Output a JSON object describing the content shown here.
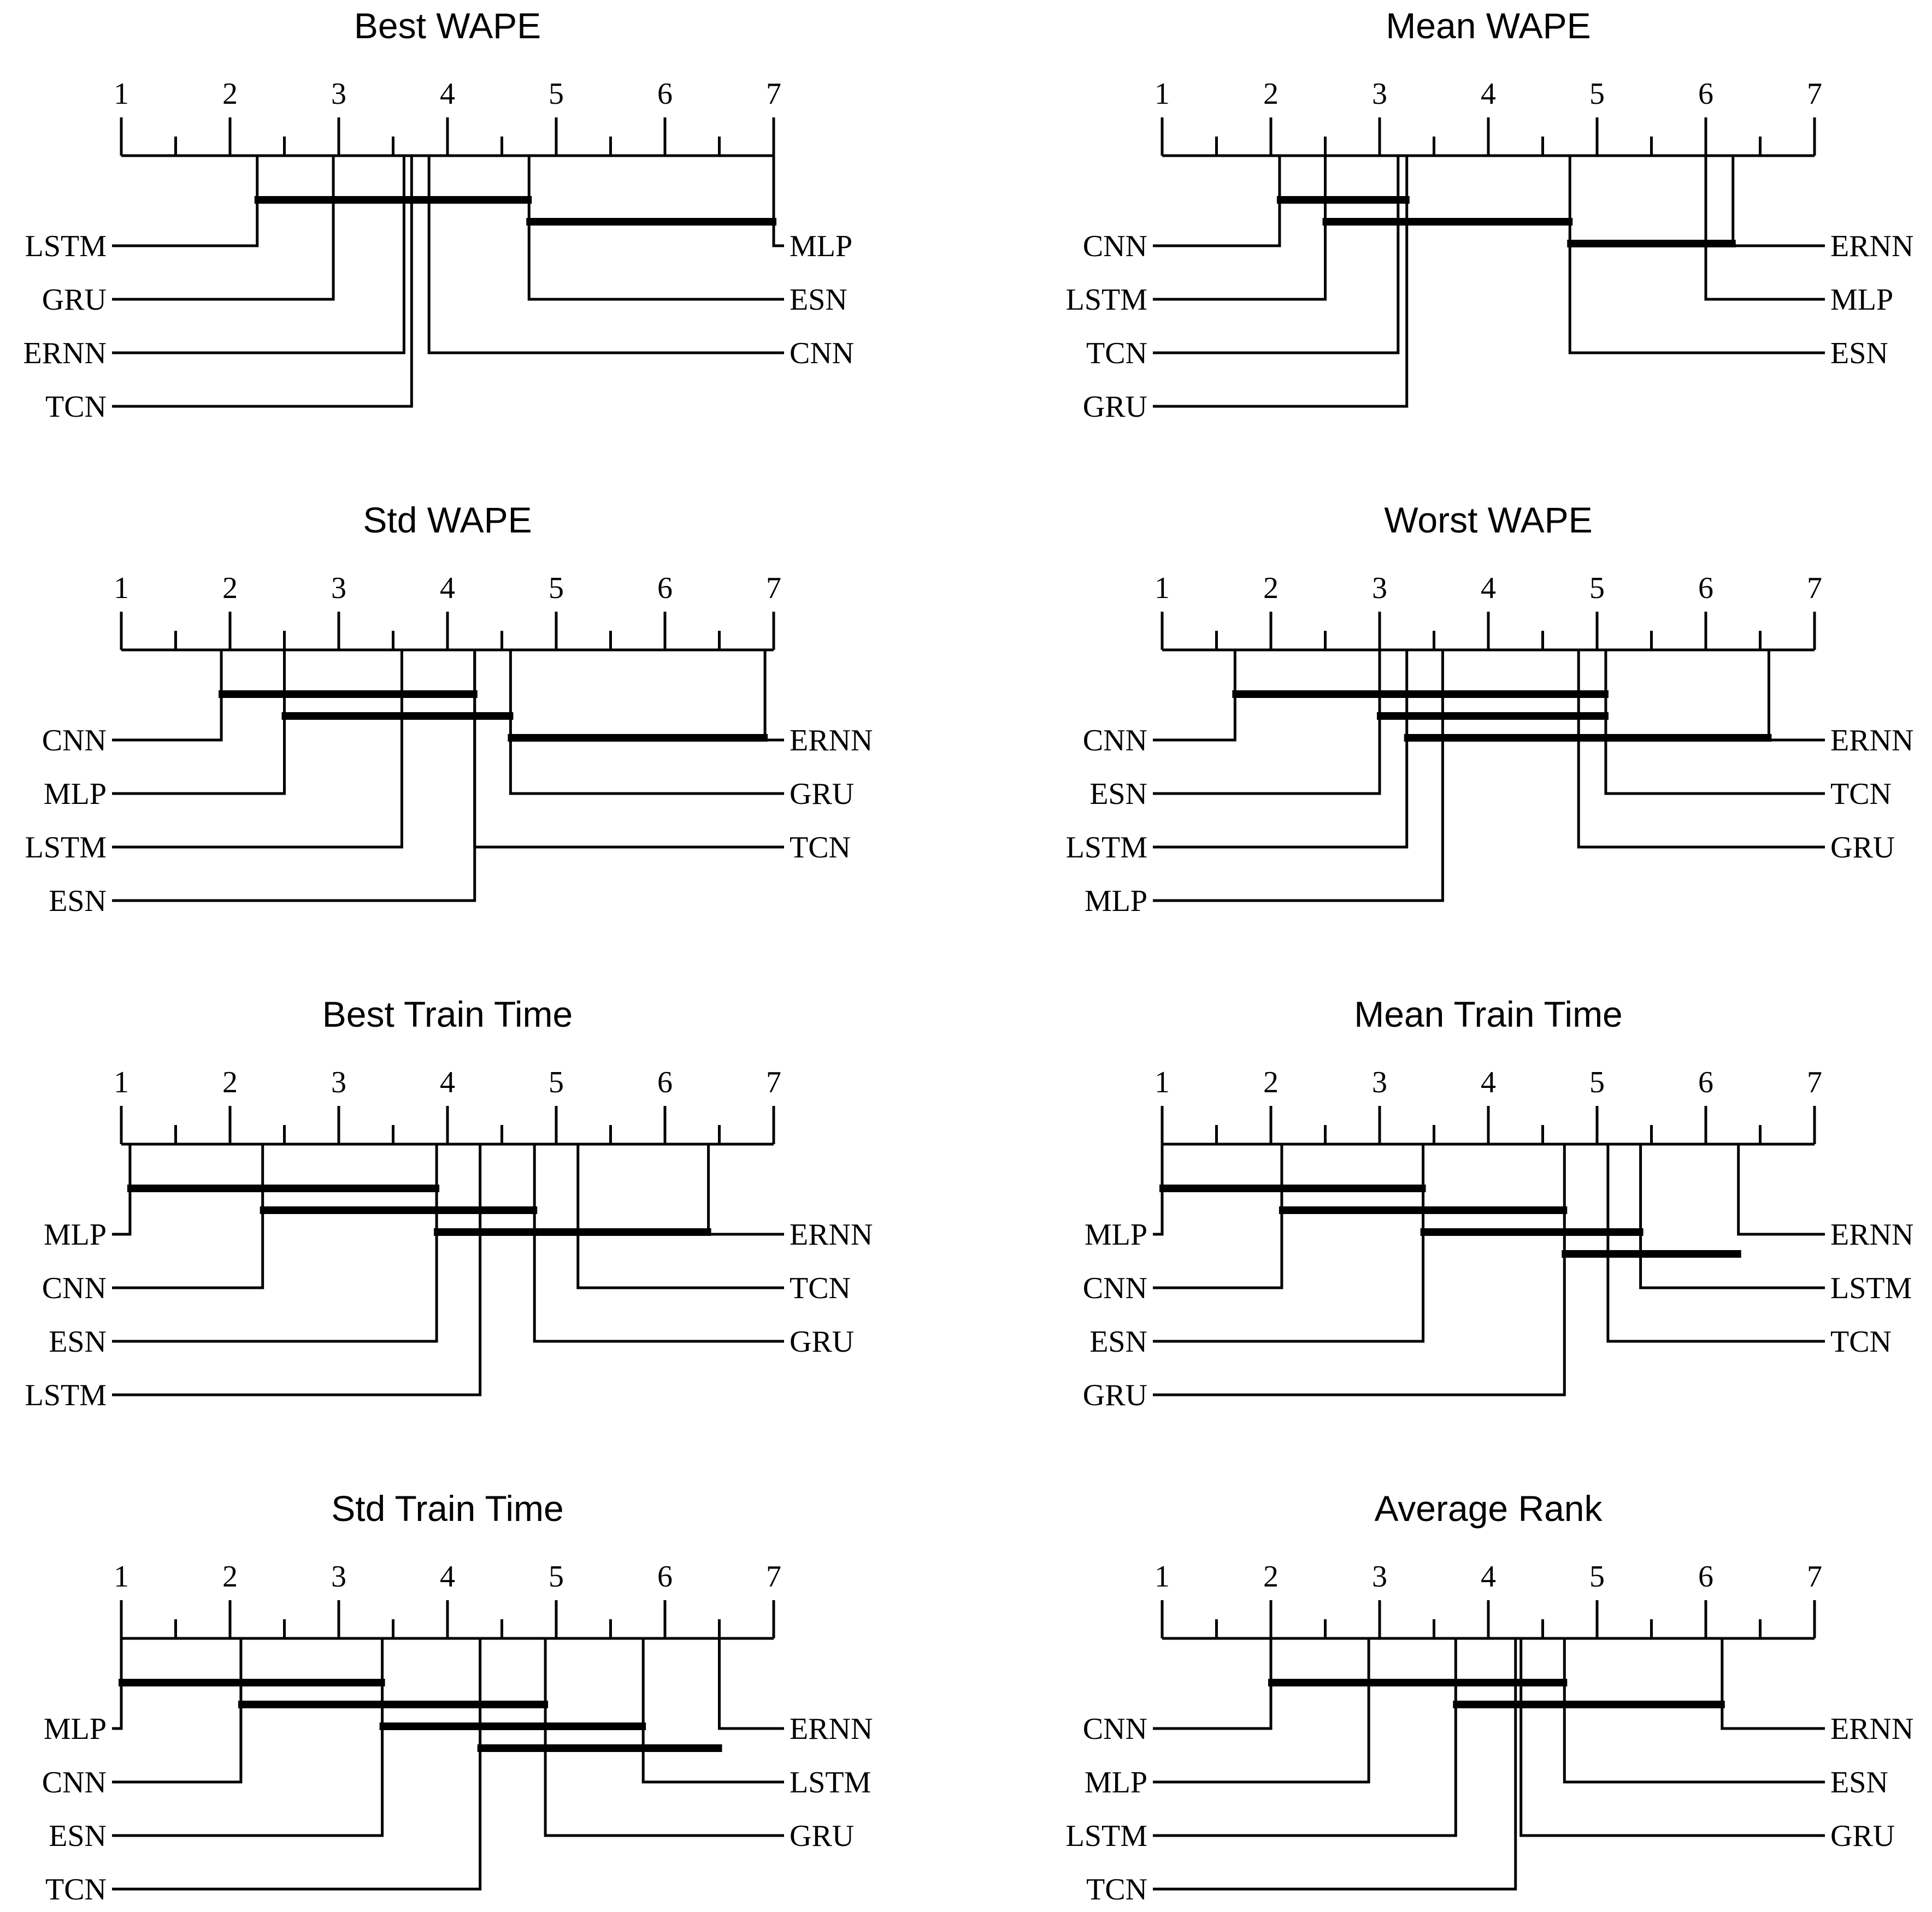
{
  "chart_data": [
    {
      "type": "critical-difference",
      "title": "Best WAPE",
      "axis_range": [
        1,
        7
      ],
      "tick_labels": [
        "1",
        "2",
        "3",
        "4",
        "5",
        "6",
        "7"
      ],
      "left": [
        {
          "name": "LSTM",
          "rank": 2.25
        },
        {
          "name": "GRU",
          "rank": 2.95
        },
        {
          "name": "ERNN",
          "rank": 3.6
        },
        {
          "name": "TCN",
          "rank": 3.67
        }
      ],
      "right": [
        {
          "name": "MLP",
          "rank": 7.0
        },
        {
          "name": "ESN",
          "rank": 4.75
        },
        {
          "name": "CNN",
          "rank": 3.83
        }
      ],
      "cliques": [
        [
          2.25,
          4.75
        ],
        [
          4.75,
          7.0
        ]
      ]
    },
    {
      "type": "critical-difference",
      "title": "Mean WAPE",
      "axis_range": [
        1,
        7
      ],
      "tick_labels": [
        "1",
        "2",
        "3",
        "4",
        "5",
        "6",
        "7"
      ],
      "left": [
        {
          "name": "CNN",
          "rank": 2.08
        },
        {
          "name": "LSTM",
          "rank": 2.5
        },
        {
          "name": "TCN",
          "rank": 3.17
        },
        {
          "name": "GRU",
          "rank": 3.25
        }
      ],
      "right": [
        {
          "name": "ERNN",
          "rank": 6.25
        },
        {
          "name": "MLP",
          "rank": 6.0
        },
        {
          "name": "ESN",
          "rank": 4.75
        }
      ],
      "cliques": [
        [
          2.08,
          3.25
        ],
        [
          2.5,
          4.75
        ],
        [
          4.75,
          6.25
        ]
      ]
    },
    {
      "type": "critical-difference",
      "title": "Std WAPE",
      "axis_range": [
        1,
        7
      ],
      "tick_labels": [
        "1",
        "2",
        "3",
        "4",
        "5",
        "6",
        "7"
      ],
      "left": [
        {
          "name": "CNN",
          "rank": 1.92
        },
        {
          "name": "MLP",
          "rank": 2.5
        },
        {
          "name": "LSTM",
          "rank": 3.58
        },
        {
          "name": "ESN",
          "rank": 4.25
        }
      ],
      "right": [
        {
          "name": "ERNN",
          "rank": 6.92
        },
        {
          "name": "GRU",
          "rank": 4.58
        },
        {
          "name": "TCN",
          "rank": 4.25
        }
      ],
      "cliques": [
        [
          1.92,
          4.25
        ],
        [
          2.5,
          4.58
        ],
        [
          4.58,
          6.92
        ]
      ]
    },
    {
      "type": "critical-difference",
      "title": "Worst WAPE",
      "axis_range": [
        1,
        7
      ],
      "tick_labels": [
        "1",
        "2",
        "3",
        "4",
        "5",
        "6",
        "7"
      ],
      "left": [
        {
          "name": "CNN",
          "rank": 1.67
        },
        {
          "name": "ESN",
          "rank": 3.0
        },
        {
          "name": "LSTM",
          "rank": 3.25
        },
        {
          "name": "MLP",
          "rank": 3.58
        }
      ],
      "right": [
        {
          "name": "ERNN",
          "rank": 6.58
        },
        {
          "name": "TCN",
          "rank": 5.08
        },
        {
          "name": "GRU",
          "rank": 4.83
        }
      ],
      "cliques": [
        [
          1.67,
          5.08
        ],
        [
          3.0,
          5.08
        ],
        [
          3.25,
          6.58
        ]
      ]
    },
    {
      "type": "critical-difference",
      "title": "Best Train Time",
      "axis_range": [
        1,
        7
      ],
      "tick_labels": [
        "1",
        "2",
        "3",
        "4",
        "5",
        "6",
        "7"
      ],
      "left": [
        {
          "name": "MLP",
          "rank": 1.08
        },
        {
          "name": "CNN",
          "rank": 2.3
        },
        {
          "name": "ESN",
          "rank": 3.9
        },
        {
          "name": "LSTM",
          "rank": 4.3
        }
      ],
      "right": [
        {
          "name": "ERNN",
          "rank": 6.4
        },
        {
          "name": "TCN",
          "rank": 5.2
        },
        {
          "name": "GRU",
          "rank": 4.8
        }
      ],
      "cliques": [
        [
          1.08,
          3.9
        ],
        [
          2.3,
          4.8
        ],
        [
          3.9,
          6.4
        ]
      ]
    },
    {
      "type": "critical-difference",
      "title": "Mean Train Time",
      "axis_range": [
        1,
        7
      ],
      "tick_labels": [
        "1",
        "2",
        "3",
        "4",
        "5",
        "6",
        "7"
      ],
      "left": [
        {
          "name": "MLP",
          "rank": 1.0
        },
        {
          "name": "CNN",
          "rank": 2.1
        },
        {
          "name": "ESN",
          "rank": 3.4
        },
        {
          "name": "GRU",
          "rank": 4.7
        }
      ],
      "right": [
        {
          "name": "ERNN",
          "rank": 6.3
        },
        {
          "name": "LSTM",
          "rank": 5.4
        },
        {
          "name": "TCN",
          "rank": 5.1
        }
      ],
      "cliques": [
        [
          1.0,
          3.4
        ],
        [
          2.1,
          4.7
        ],
        [
          3.4,
          5.4
        ],
        [
          4.7,
          6.3
        ]
      ]
    },
    {
      "type": "critical-difference",
      "title": "Std Train Time",
      "axis_range": [
        1,
        7
      ],
      "tick_labels": [
        "1",
        "2",
        "3",
        "4",
        "5",
        "6",
        "7"
      ],
      "left": [
        {
          "name": "MLP",
          "rank": 1.0
        },
        {
          "name": "CNN",
          "rank": 2.1
        },
        {
          "name": "ESN",
          "rank": 3.4
        },
        {
          "name": "TCN",
          "rank": 4.3
        }
      ],
      "right": [
        {
          "name": "ERNN",
          "rank": 6.5
        },
        {
          "name": "LSTM",
          "rank": 5.8
        },
        {
          "name": "GRU",
          "rank": 4.9
        }
      ],
      "cliques": [
        [
          1.0,
          3.4
        ],
        [
          2.1,
          4.9
        ],
        [
          3.4,
          5.8
        ],
        [
          4.3,
          6.5
        ]
      ]
    },
    {
      "type": "critical-difference",
      "title": "Average Rank",
      "axis_range": [
        1,
        7
      ],
      "tick_labels": [
        "1",
        "2",
        "3",
        "4",
        "5",
        "6",
        "7"
      ],
      "left": [
        {
          "name": "CNN",
          "rank": 2.0
        },
        {
          "name": "MLP",
          "rank": 2.9
        },
        {
          "name": "LSTM",
          "rank": 3.7
        },
        {
          "name": "TCN",
          "rank": 4.25
        }
      ],
      "right": [
        {
          "name": "ERNN",
          "rank": 6.15
        },
        {
          "name": "ESN",
          "rank": 4.7
        },
        {
          "name": "GRU",
          "rank": 4.3
        }
      ],
      "cliques": [
        [
          2.0,
          4.7
        ],
        [
          3.7,
          6.15
        ]
      ]
    }
  ]
}
